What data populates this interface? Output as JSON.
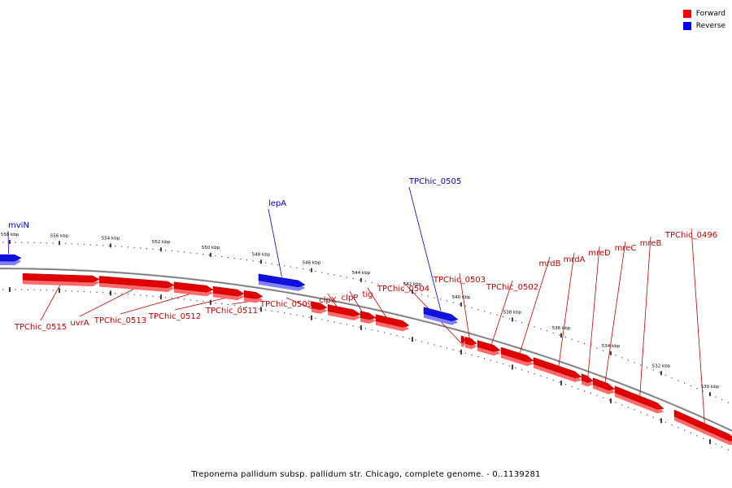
{
  "legend": [
    {
      "label": "Forward",
      "color": "#ff0000"
    },
    {
      "label": "Reverse",
      "color": "#0000ff"
    }
  ],
  "caption": "Treponema pallidum subsp. pallidum str. Chicago, complete genome. - 0..1139281",
  "colors": {
    "forward": "#e00000",
    "forward_light": "#ff6a6a",
    "reverse": "#1010e0",
    "reverse_light": "#8080ff",
    "backbone": "#777777"
  },
  "ticks": [
    {
      "label": "558 kbp"
    },
    {
      "label": "556 kbp"
    },
    {
      "label": "554 kbp"
    },
    {
      "label": "552 kbp"
    },
    {
      "label": "550 kbp"
    },
    {
      "label": "548 kbp"
    },
    {
      "label": "546 kbp"
    },
    {
      "label": "544 kbp"
    },
    {
      "label": "542 kbp"
    },
    {
      "label": "540 kbp"
    },
    {
      "label": "538 kbp"
    },
    {
      "label": "536 kbp"
    },
    {
      "label": "534 kbp"
    },
    {
      "label": "532 kbp"
    },
    {
      "label": "530 kbp"
    }
  ],
  "genes": [
    {
      "label": "mviN",
      "strand": "reverse"
    },
    {
      "label": "lepA",
      "strand": "reverse"
    },
    {
      "label": "TPChic_0505",
      "strand": "reverse"
    },
    {
      "label": "TPChic_0515",
      "strand": "forward"
    },
    {
      "label": "uvrA",
      "strand": "forward"
    },
    {
      "label": "TPChic_0513",
      "strand": "forward"
    },
    {
      "label": "TPChic_0512",
      "strand": "forward"
    },
    {
      "label": "TPChic_0511",
      "strand": "forward"
    },
    {
      "label": "TPChic_0509",
      "strand": "forward"
    },
    {
      "label": "clpX",
      "strand": "forward"
    },
    {
      "label": "clpP",
      "strand": "forward"
    },
    {
      "label": "tig",
      "strand": "forward"
    },
    {
      "label": "TPChic_0504",
      "strand": "forward"
    },
    {
      "label": "TPChic_0503",
      "strand": "forward"
    },
    {
      "label": "TPChic_0502",
      "strand": "forward"
    },
    {
      "label": "mrdB",
      "strand": "forward"
    },
    {
      "label": "mrdA",
      "strand": "forward"
    },
    {
      "label": "mreD",
      "strand": "forward"
    },
    {
      "label": "mreC",
      "strand": "forward"
    },
    {
      "label": "mreB",
      "strand": "forward"
    },
    {
      "label": "TPChic_0496",
      "strand": "forward"
    }
  ]
}
